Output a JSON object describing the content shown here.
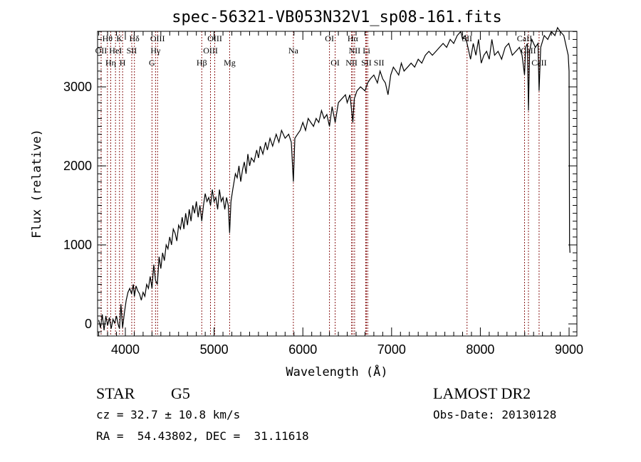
{
  "chart_data": {
    "type": "line",
    "title": "spec-56321-VB053N32V1_sp08-161.fits",
    "xlabel": "Wavelength (Å)",
    "ylabel": "Flux (relative)",
    "xlim": [
      3687,
      9088
    ],
    "ylim": [
      -153,
      3703
    ],
    "xticks": [
      4000,
      5000,
      6000,
      7000,
      8000,
      9000
    ],
    "yticks": [
      0,
      1000,
      2000,
      3000
    ],
    "grid": false,
    "series": [
      {
        "name": "spectrum",
        "x": [
          3700,
          3720,
          3740,
          3760,
          3780,
          3800,
          3820,
          3840,
          3860,
          3880,
          3900,
          3920,
          3934,
          3950,
          3969,
          3990,
          4010,
          4030,
          4050,
          4070,
          4090,
          4102,
          4120,
          4140,
          4160,
          4180,
          4200,
          4220,
          4240,
          4260,
          4280,
          4300,
          4320,
          4340,
          4360,
          4380,
          4400,
          4420,
          4440,
          4460,
          4480,
          4500,
          4520,
          4540,
          4560,
          4580,
          4600,
          4620,
          4640,
          4660,
          4680,
          4700,
          4720,
          4740,
          4760,
          4780,
          4800,
          4820,
          4840,
          4861,
          4880,
          4900,
          4920,
          4940,
          4960,
          4980,
          5000,
          5020,
          5040,
          5060,
          5080,
          5100,
          5120,
          5140,
          5160,
          5175,
          5190,
          5210,
          5240,
          5260,
          5280,
          5300,
          5320,
          5340,
          5360,
          5380,
          5400,
          5420,
          5450,
          5480,
          5500,
          5520,
          5550,
          5580,
          5600,
          5630,
          5660,
          5700,
          5730,
          5760,
          5800,
          5840,
          5870,
          5893,
          5910,
          5940,
          5970,
          6000,
          6030,
          6060,
          6090,
          6120,
          6150,
          6180,
          6210,
          6240,
          6270,
          6300,
          6330,
          6364,
          6400,
          6440,
          6480,
          6500,
          6530,
          6550,
          6563,
          6580,
          6610,
          6650,
          6700,
          6730,
          6760,
          6800,
          6840,
          6870,
          6900,
          6930,
          6960,
          6990,
          7020,
          7050,
          7080,
          7110,
          7140,
          7180,
          7220,
          7260,
          7300,
          7340,
          7380,
          7420,
          7460,
          7500,
          7540,
          7580,
          7620,
          7660,
          7700,
          7740,
          7780,
          7800,
          7830,
          7860,
          7890,
          7920,
          7950,
          7980,
          8010,
          8040,
          8070,
          8100,
          8130,
          8160,
          8200,
          8240,
          8280,
          8320,
          8360,
          8400,
          8440,
          8470,
          8498,
          8510,
          8530,
          8542,
          8555,
          8580,
          8620,
          8650,
          8662,
          8680,
          8720,
          8760,
          8800,
          8840,
          8870,
          8900,
          8940,
          8970,
          8990,
          9000,
          9005,
          9010
        ],
        "y": [
          50,
          -50,
          120,
          -80,
          100,
          -20,
          80,
          -60,
          60,
          10,
          100,
          -10,
          -60,
          250,
          -50,
          150,
          300,
          400,
          450,
          380,
          500,
          350,
          480,
          420,
          380,
          300,
          400,
          350,
          500,
          450,
          600,
          450,
          750,
          550,
          500,
          850,
          700,
          900,
          800,
          1000,
          950,
          1100,
          1000,
          1200,
          1150,
          1050,
          1250,
          1200,
          1350,
          1200,
          1400,
          1250,
          1450,
          1300,
          1500,
          1400,
          1550,
          1350,
          1500,
          1300,
          1500,
          1650,
          1550,
          1600,
          1500,
          1700,
          1550,
          1600,
          1450,
          1700,
          1550,
          1600,
          1450,
          1600,
          1500,
          1150,
          1550,
          1700,
          1900,
          1850,
          2000,
          1800,
          1950,
          2050,
          1900,
          2150,
          2000,
          2100,
          2050,
          2200,
          2100,
          2250,
          2150,
          2300,
          2200,
          2350,
          2250,
          2400,
          2300,
          2450,
          2350,
          2400,
          2300,
          1800,
          2350,
          2400,
          2450,
          2550,
          2450,
          2600,
          2550,
          2500,
          2600,
          2550,
          2700,
          2600,
          2650,
          2500,
          2750,
          2550,
          2800,
          2850,
          2900,
          2800,
          2900,
          2700,
          2550,
          2850,
          2950,
          3000,
          2950,
          3050,
          3100,
          3150,
          3050,
          3200,
          3100,
          3050,
          2900,
          3150,
          3250,
          3200,
          3150,
          3300,
          3200,
          3250,
          3300,
          3250,
          3350,
          3300,
          3400,
          3450,
          3400,
          3450,
          3500,
          3550,
          3500,
          3600,
          3550,
          3650,
          3700,
          3600,
          3650,
          3500,
          3350,
          3550,
          3400,
          3600,
          3300,
          3400,
          3450,
          3350,
          3600,
          3400,
          3450,
          3350,
          3500,
          3550,
          3400,
          3450,
          3500,
          3400,
          3150,
          3500,
          3550,
          2700,
          3450,
          3600,
          3500,
          3550,
          2950,
          3500,
          3650,
          3600,
          3700,
          3650,
          3750,
          3700,
          3650,
          3500,
          3400,
          3200,
          1000,
          900
        ]
      }
    ],
    "lines": [
      {
        "label": "Hθ",
        "wl": 3798,
        "row": 1
      },
      {
        "label": "K",
        "wl": 3934,
        "row": 1
      },
      {
        "label": "Hδ",
        "wl": 4102,
        "row": 1
      },
      {
        "label": "OIII",
        "wl": 4363,
        "row": 1
      },
      {
        "label": "OIII",
        "wl": 5007,
        "row": 1
      },
      {
        "label": "OI",
        "wl": 6300,
        "row": 1
      },
      {
        "label": "Hα",
        "wl": 6563,
        "row": 1
      },
      {
        "label": "SII",
        "wl": 7850,
        "row": 1
      },
      {
        "label": "CaII",
        "wl": 8498,
        "row": 1
      },
      {
        "label": "OII",
        "wl": 3727,
        "row": 2
      },
      {
        "label": "HeI",
        "wl": 3889,
        "row": 2
      },
      {
        "label": "SII",
        "wl": 4072,
        "row": 2
      },
      {
        "label": "Hγ",
        "wl": 4340,
        "row": 2
      },
      {
        "label": "OIII",
        "wl": 4959,
        "row": 2
      },
      {
        "label": "Na",
        "wl": 5893,
        "row": 2
      },
      {
        "label": "NII",
        "wl": 6583,
        "row": 2
      },
      {
        "label": "Li",
        "wl": 6708,
        "row": 2
      },
      {
        "label": "CaII",
        "wl": 8542,
        "row": 2
      },
      {
        "label": "Hη",
        "wl": 3835,
        "row": 3
      },
      {
        "label": "H",
        "wl": 3969,
        "row": 3
      },
      {
        "label": "G",
        "wl": 4300,
        "row": 3
      },
      {
        "label": "Hβ",
        "wl": 4861,
        "row": 3
      },
      {
        "label": "Mg",
        "wl": 5175,
        "row": 3
      },
      {
        "label": "OI",
        "wl": 6364,
        "row": 3
      },
      {
        "label": "NII",
        "wl": 6548,
        "row": 3
      },
      {
        "label": "SII",
        "wl": 6716,
        "row": 3
      },
      {
        "label": "SII",
        "wl": 6731,
        "row": 3
      },
      {
        "label": "CaII",
        "wl": 8662,
        "row": 3
      }
    ],
    "line_color": "#8b1a1a",
    "spectrum_color": "#000000"
  },
  "info": {
    "class": "STAR",
    "subclass": "G5",
    "survey": "LAMOST DR2",
    "cz": "cz = 32.7 ± 10.8 km/s",
    "obs_date": "Obs-Date: 20130128",
    "coords": "RA =  54.43802, DEC =  31.11618"
  }
}
